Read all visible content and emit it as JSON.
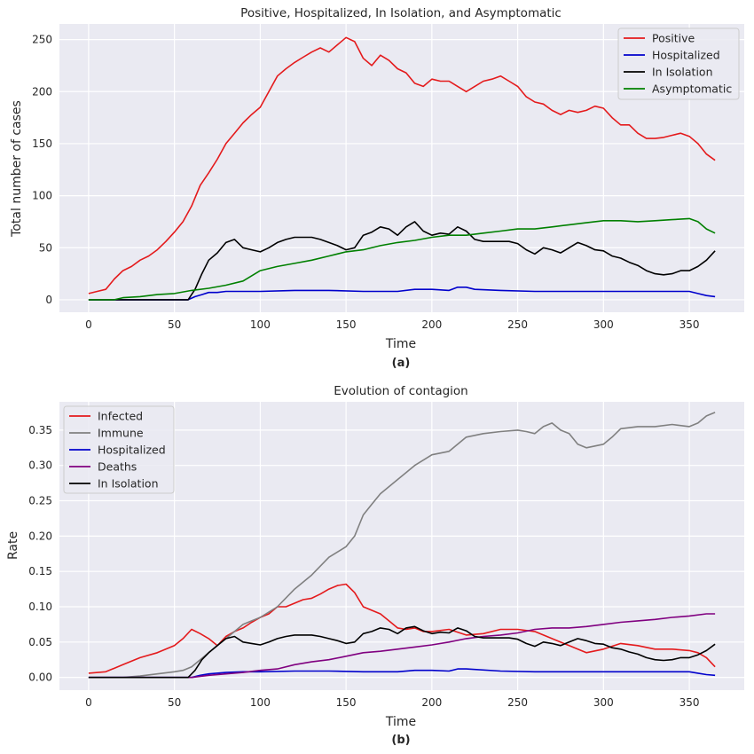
{
  "chart_data": [
    {
      "type": "line",
      "title": "Positive, Hospitalized, In Isolation, and Asymptomatic",
      "xlabel": "Time",
      "ylabel": "Total number of cases",
      "panel_label": "(a)",
      "xlim": [
        -17,
        382
      ],
      "ylim": [
        -12,
        265
      ],
      "xticks": [
        0,
        50,
        100,
        150,
        200,
        250,
        300,
        350
      ],
      "yticks": [
        0,
        50,
        100,
        150,
        200,
        250
      ],
      "grid": true,
      "legend_position": "top-right",
      "series": [
        {
          "name": "Positive",
          "color": "#e41a1c",
          "x": [
            0,
            5,
            10,
            15,
            20,
            25,
            30,
            35,
            40,
            45,
            50,
            55,
            60,
            65,
            70,
            75,
            80,
            85,
            90,
            95,
            100,
            105,
            110,
            115,
            120,
            125,
            130,
            135,
            140,
            145,
            150,
            155,
            160,
            165,
            170,
            175,
            180,
            185,
            190,
            195,
            200,
            205,
            210,
            215,
            220,
            225,
            230,
            235,
            240,
            245,
            250,
            255,
            260,
            265,
            270,
            275,
            280,
            285,
            290,
            295,
            300,
            305,
            310,
            315,
            320,
            325,
            330,
            335,
            340,
            345,
            350,
            355,
            360,
            365
          ],
          "y": [
            6,
            8,
            10,
            20,
            28,
            32,
            38,
            42,
            48,
            56,
            65,
            75,
            90,
            110,
            122,
            135,
            150,
            160,
            170,
            178,
            185,
            200,
            215,
            222,
            228,
            233,
            238,
            242,
            238,
            245,
            252,
            248,
            232,
            225,
            235,
            230,
            222,
            218,
            208,
            205,
            212,
            210,
            210,
            205,
            200,
            205,
            210,
            212,
            215,
            210,
            205,
            195,
            190,
            188,
            182,
            178,
            182,
            180,
            182,
            186,
            184,
            175,
            168,
            168,
            160,
            155,
            155,
            156,
            158,
            160,
            157,
            150,
            140,
            134
          ]
        },
        {
          "name": "Hospitalized",
          "color": "#0000cc",
          "x": [
            0,
            55,
            58,
            62,
            66,
            70,
            75,
            80,
            90,
            100,
            120,
            140,
            160,
            180,
            190,
            200,
            210,
            215,
            220,
            225,
            240,
            260,
            280,
            300,
            320,
            340,
            350,
            355,
            360,
            365
          ],
          "y": [
            0,
            0,
            0,
            3,
            5,
            7,
            7,
            8,
            8,
            8,
            9,
            9,
            8,
            8,
            10,
            10,
            9,
            12,
            12,
            10,
            9,
            8,
            8,
            8,
            8,
            8,
            8,
            6,
            4,
            3
          ]
        },
        {
          "name": "In Isolation",
          "color": "#000000",
          "x": [
            0,
            55,
            58,
            62,
            66,
            70,
            75,
            80,
            85,
            90,
            95,
            100,
            105,
            110,
            115,
            120,
            125,
            130,
            135,
            140,
            145,
            150,
            155,
            160,
            165,
            170,
            175,
            180,
            185,
            190,
            195,
            200,
            205,
            210,
            215,
            220,
            225,
            230,
            235,
            240,
            245,
            250,
            255,
            260,
            265,
            270,
            275,
            280,
            285,
            290,
            295,
            300,
            305,
            310,
            315,
            320,
            325,
            330,
            335,
            340,
            345,
            350,
            355,
            360,
            365
          ],
          "y": [
            0,
            0,
            0,
            10,
            25,
            38,
            45,
            55,
            58,
            50,
            48,
            46,
            50,
            55,
            58,
            60,
            60,
            60,
            58,
            55,
            52,
            48,
            50,
            62,
            65,
            70,
            68,
            62,
            70,
            75,
            66,
            62,
            64,
            63,
            70,
            66,
            58,
            56,
            56,
            56,
            56,
            54,
            48,
            44,
            50,
            48,
            45,
            50,
            55,
            52,
            48,
            47,
            42,
            40,
            36,
            33,
            28,
            25,
            24,
            25,
            28,
            28,
            32,
            38,
            47
          ]
        },
        {
          "name": "Asymptomatic",
          "color": "#008000",
          "x": [
            0,
            15,
            20,
            30,
            40,
            50,
            60,
            70,
            80,
            90,
            100,
            110,
            120,
            130,
            140,
            150,
            160,
            170,
            180,
            190,
            200,
            210,
            220,
            230,
            240,
            250,
            260,
            270,
            280,
            290,
            300,
            310,
            320,
            330,
            340,
            350,
            355,
            360,
            365
          ],
          "y": [
            0,
            0,
            2,
            3,
            5,
            6,
            9,
            11,
            14,
            18,
            28,
            32,
            35,
            38,
            42,
            46,
            48,
            52,
            55,
            57,
            60,
            62,
            62,
            64,
            66,
            68,
            68,
            70,
            72,
            74,
            76,
            76,
            75,
            76,
            77,
            78,
            75,
            68,
            64
          ]
        }
      ]
    },
    {
      "type": "line",
      "title": "Evolution of contagion",
      "xlabel": "Time",
      "ylabel": "Rate",
      "panel_label": "(b)",
      "xlim": [
        -17,
        382
      ],
      "ylim": [
        -0.018,
        0.39
      ],
      "xticks": [
        0,
        50,
        100,
        150,
        200,
        250,
        300,
        350
      ],
      "yticks": [
        0.0,
        0.05,
        0.1,
        0.15,
        0.2,
        0.25,
        0.3,
        0.35
      ],
      "grid": true,
      "legend_position": "top-left",
      "series": [
        {
          "name": "Infected",
          "color": "#e41a1c",
          "x": [
            0,
            10,
            20,
            30,
            40,
            50,
            55,
            60,
            65,
            70,
            75,
            80,
            85,
            90,
            95,
            100,
            105,
            110,
            115,
            120,
            125,
            130,
            135,
            140,
            145,
            150,
            155,
            160,
            165,
            170,
            175,
            180,
            185,
            190,
            195,
            200,
            210,
            220,
            230,
            240,
            250,
            260,
            270,
            280,
            290,
            300,
            310,
            320,
            330,
            340,
            350,
            355,
            360,
            365
          ],
          "y": [
            0.006,
            0.008,
            0.018,
            0.028,
            0.035,
            0.045,
            0.055,
            0.068,
            0.062,
            0.055,
            0.045,
            0.058,
            0.065,
            0.07,
            0.078,
            0.085,
            0.09,
            0.1,
            0.1,
            0.105,
            0.11,
            0.112,
            0.118,
            0.125,
            0.13,
            0.132,
            0.12,
            0.1,
            0.095,
            0.09,
            0.08,
            0.07,
            0.068,
            0.07,
            0.065,
            0.065,
            0.068,
            0.06,
            0.062,
            0.068,
            0.068,
            0.065,
            0.055,
            0.045,
            0.035,
            0.04,
            0.048,
            0.045,
            0.04,
            0.04,
            0.038,
            0.035,
            0.028,
            0.015
          ]
        },
        {
          "name": "Immune",
          "color": "#808080",
          "x": [
            0,
            20,
            30,
            40,
            50,
            55,
            60,
            65,
            70,
            75,
            80,
            85,
            90,
            95,
            100,
            110,
            120,
            130,
            140,
            150,
            155,
            160,
            165,
            170,
            175,
            180,
            185,
            190,
            200,
            210,
            220,
            230,
            240,
            250,
            255,
            260,
            265,
            270,
            275,
            280,
            285,
            290,
            300,
            305,
            310,
            320,
            330,
            340,
            350,
            355,
            360,
            365
          ],
          "y": [
            0,
            0,
            0.002,
            0.005,
            0.008,
            0.01,
            0.015,
            0.025,
            0.035,
            0.045,
            0.055,
            0.065,
            0.075,
            0.08,
            0.085,
            0.1,
            0.125,
            0.145,
            0.17,
            0.185,
            0.2,
            0.23,
            0.245,
            0.26,
            0.27,
            0.28,
            0.29,
            0.3,
            0.315,
            0.32,
            0.34,
            0.345,
            0.348,
            0.35,
            0.348,
            0.345,
            0.355,
            0.36,
            0.35,
            0.345,
            0.33,
            0.325,
            0.33,
            0.34,
            0.352,
            0.355,
            0.355,
            0.358,
            0.355,
            0.36,
            0.37,
            0.375
          ]
        },
        {
          "name": "Hospitalized",
          "color": "#0000cc",
          "x": [
            0,
            55,
            60,
            65,
            70,
            80,
            90,
            100,
            120,
            140,
            160,
            180,
            190,
            200,
            210,
            215,
            220,
            240,
            260,
            280,
            300,
            320,
            340,
            350,
            355,
            360,
            365
          ],
          "y": [
            0,
            0,
            0,
            0.003,
            0.005,
            0.007,
            0.008,
            0.008,
            0.009,
            0.009,
            0.008,
            0.008,
            0.01,
            0.01,
            0.009,
            0.012,
            0.012,
            0.009,
            0.008,
            0.008,
            0.008,
            0.008,
            0.008,
            0.008,
            0.006,
            0.004,
            0.003
          ]
        },
        {
          "name": "Deaths",
          "color": "#800080",
          "x": [
            0,
            55,
            60,
            70,
            80,
            90,
            100,
            110,
            120,
            130,
            140,
            150,
            160,
            170,
            180,
            190,
            200,
            210,
            220,
            230,
            240,
            250,
            260,
            270,
            280,
            290,
            300,
            310,
            320,
            330,
            340,
            350,
            360,
            365
          ],
          "y": [
            0,
            0,
            0,
            0.003,
            0.005,
            0.007,
            0.01,
            0.012,
            0.018,
            0.022,
            0.025,
            0.03,
            0.035,
            0.037,
            0.04,
            0.043,
            0.046,
            0.05,
            0.055,
            0.058,
            0.06,
            0.063,
            0.068,
            0.07,
            0.07,
            0.072,
            0.075,
            0.078,
            0.08,
            0.082,
            0.085,
            0.087,
            0.09,
            0.09
          ]
        },
        {
          "name": "In Isolation",
          "color": "#000000",
          "x": [
            0,
            55,
            58,
            62,
            66,
            70,
            75,
            80,
            85,
            90,
            95,
            100,
            105,
            110,
            115,
            120,
            125,
            130,
            135,
            140,
            145,
            150,
            155,
            160,
            165,
            170,
            175,
            180,
            185,
            190,
            195,
            200,
            205,
            210,
            215,
            220,
            225,
            230,
            235,
            240,
            245,
            250,
            255,
            260,
            265,
            270,
            275,
            280,
            285,
            290,
            295,
            300,
            305,
            310,
            315,
            320,
            325,
            330,
            335,
            340,
            345,
            350,
            355,
            360,
            365
          ],
          "y": [
            0,
            0,
            0,
            0.01,
            0.025,
            0.035,
            0.045,
            0.055,
            0.058,
            0.05,
            0.048,
            0.046,
            0.05,
            0.055,
            0.058,
            0.06,
            0.06,
            0.06,
            0.058,
            0.055,
            0.052,
            0.048,
            0.05,
            0.062,
            0.065,
            0.07,
            0.068,
            0.062,
            0.07,
            0.072,
            0.066,
            0.062,
            0.064,
            0.063,
            0.07,
            0.066,
            0.058,
            0.056,
            0.056,
            0.056,
            0.056,
            0.054,
            0.048,
            0.044,
            0.05,
            0.048,
            0.045,
            0.05,
            0.055,
            0.052,
            0.048,
            0.047,
            0.042,
            0.04,
            0.036,
            0.033,
            0.028,
            0.025,
            0.024,
            0.025,
            0.028,
            0.028,
            0.032,
            0.038,
            0.047
          ]
        }
      ]
    }
  ]
}
